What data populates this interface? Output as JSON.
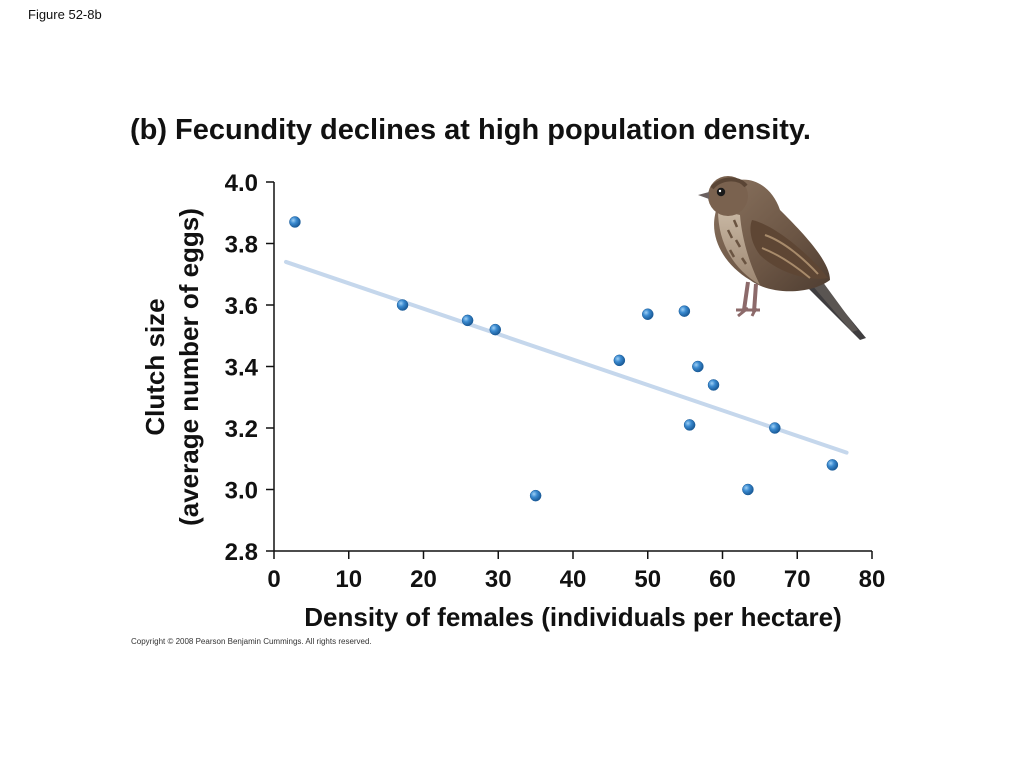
{
  "figure_label": "Figure 52-8b",
  "panel_letter": "(b)",
  "panel_title": "Fecundity declines at high population density.",
  "copyright": "Copyright © 2008 Pearson Benjamin Cummings. All rights reserved.",
  "chart_data": {
    "type": "scatter",
    "title": "Fecundity declines at high population density.",
    "xlabel": "Density of females (individuals per hectare)",
    "ylabel_line1": "Clutch size",
    "ylabel_line2": "(average number of eggs)",
    "xlim": [
      0,
      80
    ],
    "ylim": [
      2.8,
      4.0
    ],
    "xticks": [
      0,
      10,
      20,
      30,
      40,
      50,
      60,
      70,
      80
    ],
    "xtick_labels": [
      "0",
      "10",
      "20",
      "30",
      "40",
      "50",
      "60",
      "70",
      "80"
    ],
    "yticks": [
      2.8,
      3.0,
      3.2,
      3.4,
      3.6,
      3.8,
      4.0
    ],
    "ytick_labels": [
      "2.8",
      "3.0",
      "3.2",
      "3.4",
      "3.6",
      "3.8",
      "4.0"
    ],
    "grid": false,
    "points": [
      {
        "x": 2.8,
        "y": 3.87
      },
      {
        "x": 17.2,
        "y": 3.6
      },
      {
        "x": 25.9,
        "y": 3.55
      },
      {
        "x": 29.6,
        "y": 3.52
      },
      {
        "x": 35.0,
        "y": 2.98
      },
      {
        "x": 46.2,
        "y": 3.42
      },
      {
        "x": 50.0,
        "y": 3.57
      },
      {
        "x": 54.9,
        "y": 3.58
      },
      {
        "x": 55.6,
        "y": 3.21
      },
      {
        "x": 56.7,
        "y": 3.4
      },
      {
        "x": 58.8,
        "y": 3.34
      },
      {
        "x": 63.4,
        "y": 3.0
      },
      {
        "x": 67.0,
        "y": 3.2
      },
      {
        "x": 74.7,
        "y": 3.08
      }
    ],
    "trendline": {
      "x": [
        1.6,
        76.6
      ],
      "y": [
        3.74,
        3.12
      ]
    },
    "colors": {
      "point": "#2f7fc1",
      "trendline": "#c5d7ec",
      "axis": "#111111"
    }
  },
  "illustration": {
    "icon": "sparrow-bird-illustration"
  }
}
